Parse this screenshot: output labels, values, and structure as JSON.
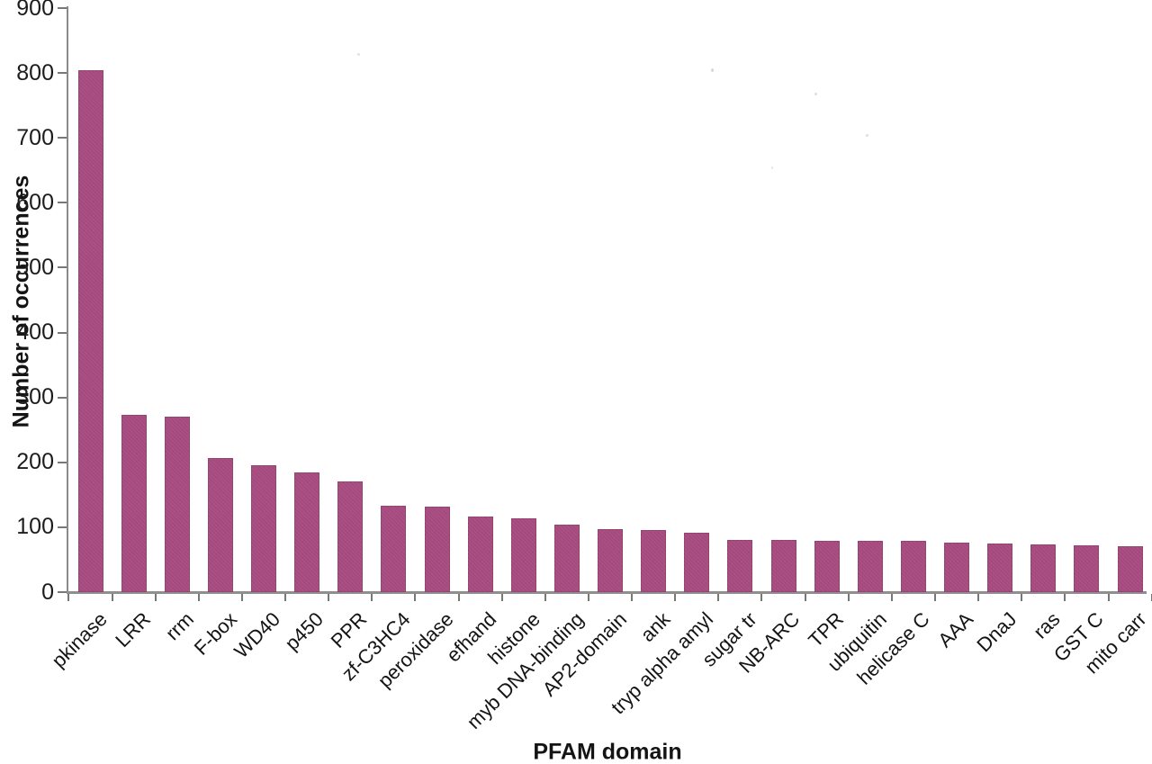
{
  "chart_data": {
    "type": "bar",
    "title": "",
    "xlabel": "PFAM domain",
    "ylabel": "Number of occurrences",
    "categories": [
      "pkinase",
      "LRR",
      "rrm",
      "F-box",
      "WD40",
      "p450",
      "PPR",
      "zf-C3HC4",
      "peroxidase",
      "efhand",
      "histone",
      "myb DNA-binding",
      "AP2-domain",
      "ank",
      "tryp alpha amyl",
      "sugar tr",
      "NB-ARC",
      "TPR",
      "ubiquitin",
      "helicase C",
      "AAA",
      "DnaJ",
      "ras",
      "GST C",
      "mito carr"
    ],
    "values": [
      805,
      273,
      270,
      206,
      195,
      185,
      171,
      133,
      132,
      117,
      114,
      104,
      97,
      96,
      91,
      81,
      80,
      79,
      79,
      79,
      76,
      75,
      73,
      72,
      71
    ],
    "ylim": [
      0,
      900
    ],
    "yticks": [
      0,
      100,
      200,
      300,
      400,
      500,
      600,
      700,
      800,
      900
    ],
    "bar_color": "#a5477c",
    "axis_color": "#8a8a8a",
    "text_color": "#141414",
    "background_color": "#ffffff",
    "grid": "off",
    "legend": "none"
  }
}
